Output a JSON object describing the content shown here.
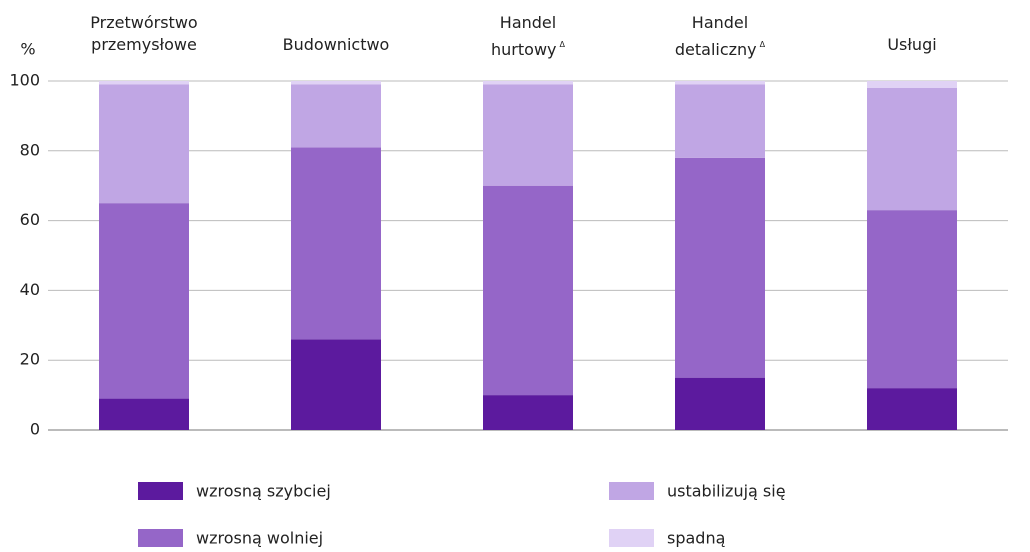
{
  "chart_data": {
    "type": "stacked_bar",
    "y_label": "%",
    "categories": [
      "Przetwórstwo\nprzemysłowe",
      "Budownictwo",
      "Handel\nhurtowy",
      "Handel\ndetaliczny",
      "Usługi"
    ],
    "category_marks": [
      null,
      null,
      "Δ",
      "Δ",
      null
    ],
    "series": [
      {
        "name": "wzrosną szybciej",
        "color": "#5c1a9e",
        "values": [
          9,
          26,
          10,
          15,
          12
        ]
      },
      {
        "name": "wzrosną wolniej",
        "color": "#9566c8",
        "values": [
          56,
          55,
          60,
          63,
          51
        ]
      },
      {
        "name": "ustabilizują się",
        "color": "#c0a6e4",
        "values": [
          34,
          18,
          29,
          21,
          35
        ]
      },
      {
        "name": "spadną",
        "color": "#e0d2f5",
        "values": [
          1,
          1,
          1,
          1,
          2
        ]
      }
    ],
    "ylim": [
      0,
      100
    ],
    "yticks": [
      0,
      20,
      40,
      60,
      80,
      100
    ],
    "grid": true
  }
}
